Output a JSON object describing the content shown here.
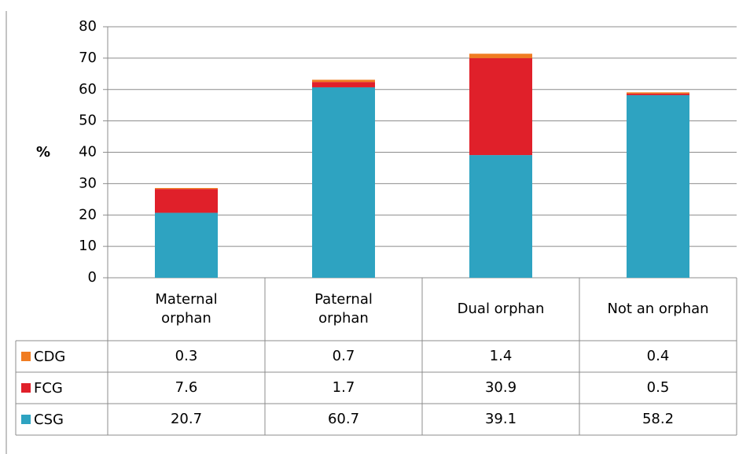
{
  "chart_data": {
    "type": "stacked-bar",
    "y_label": "%",
    "categories": [
      "Maternal orphan",
      "Paternal orphan",
      "Dual orphan",
      "Not an orphan"
    ],
    "series": [
      {
        "name": "CSG",
        "color": "#2ea3c1",
        "values": [
          20.7,
          60.7,
          39.1,
          58.2
        ]
      },
      {
        "name": "FCG",
        "color": "#e0202a",
        "values": [
          7.6,
          1.7,
          30.9,
          0.5
        ]
      },
      {
        "name": "CDG",
        "color": "#f07c22",
        "values": [
          0.3,
          0.7,
          1.4,
          0.4
        ]
      }
    ],
    "ylim": [
      0,
      80
    ],
    "yticks": [
      0,
      10,
      20,
      30,
      40,
      50,
      60,
      70,
      80
    ],
    "grid": true
  }
}
